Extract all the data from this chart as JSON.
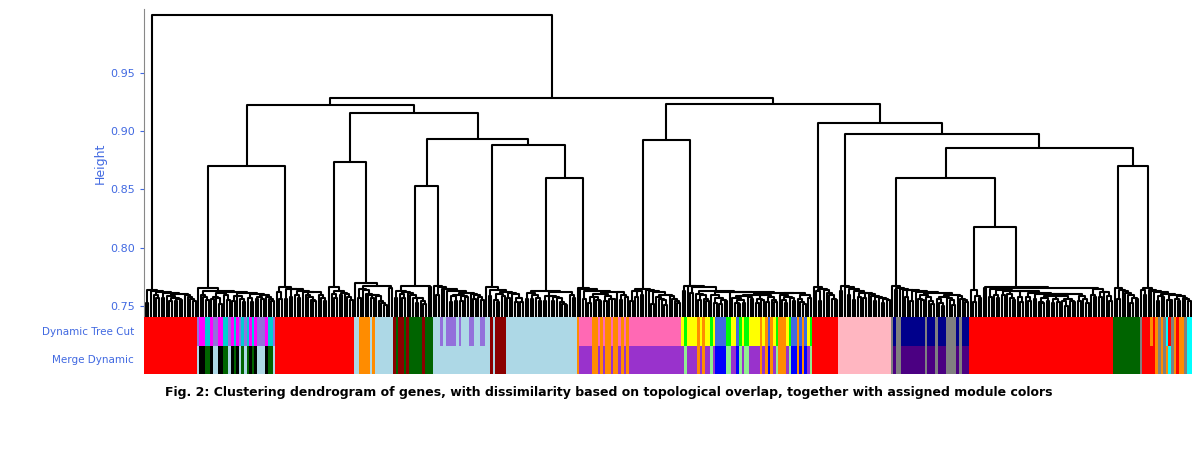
{
  "title": "",
  "ylabel": "Height",
  "ylim": [
    0.74,
    1.005
  ],
  "yticks": [
    0.75,
    0.8,
    0.85,
    0.9,
    0.95
  ],
  "caption": "Fig. 2: Clustering dendrogram of genes, with dissimilarity based on topological overlap, together with assigned module colors",
  "caption_fontsize": 9,
  "ylabel_color": "#4169E1",
  "tick_color": "#4169E1",
  "n_genes": 400,
  "random_seed": 42,
  "dynamic_tree_cut_colors": [
    "#FF0000",
    "#00FFFF",
    "#FF8C00",
    "#808080",
    "#FF8C00",
    "#FF0000",
    "#FF0000",
    "#808080",
    "#00FFFF",
    "#FF8C00",
    "#808080",
    "#FF0000",
    "#FF8C00",
    "#808080",
    "#00FFFF",
    "#FF8C00",
    "#FF0000",
    "#808080",
    "#FF8C00",
    "#FF0000",
    "#00008B",
    "#00008B",
    "#00008B",
    "#00008B",
    "#00008B",
    "#00008B",
    "#00008B",
    "#00008B",
    "#00008B",
    "#00008B",
    "#00008B",
    "#00008B",
    "#00008B",
    "#00008B",
    "#00008B",
    "#00008B",
    "#00008B",
    "#00008B",
    "#00008B",
    "#00008B",
    "#808080",
    "#808080",
    "#808080",
    "#808080",
    "#808080",
    "#808080",
    "#808080",
    "#808080",
    "#808080",
    "#808080",
    "#FF69B4",
    "#FF69B4",
    "#FF69B4",
    "#FF69B4",
    "#FF69B4",
    "#FF69B4",
    "#FF69B4",
    "#FF69B4",
    "#FF69B4",
    "#FF69B4",
    "#FF69B4",
    "#FF69B4",
    "#FF69B4",
    "#FF69B4",
    "#FF69B4",
    "#FF69B4",
    "#FF69B4",
    "#FF69B4",
    "#FF69B4",
    "#FF69B4",
    "#FF69B4",
    "#FF69B4",
    "#FF69B4",
    "#FF69B4",
    "#FF69B4",
    "#FF69B4",
    "#FF69B4",
    "#FF69B4",
    "#FF69B4",
    "#FF69B4",
    "#FF8C00",
    "#FF8C00",
    "#FF8C00",
    "#FF8C00",
    "#FF8C00",
    "#FF8C00",
    "#FF8C00",
    "#FF8C00",
    "#FF8C00",
    "#FF8C00",
    "#FF8C00",
    "#FF8C00",
    "#FF8C00",
    "#FF8C00",
    "#FF8C00",
    "#FF8C00",
    "#FF8C00",
    "#FF8C00",
    "#FF8C00",
    "#FF8C00",
    "#FFFF00",
    "#FFFF00",
    "#FFFF00",
    "#FFFF00",
    "#FFFF00",
    "#FFFF00",
    "#FFFF00",
    "#FFFF00",
    "#FFFF00",
    "#FFFF00",
    "#FFFF00",
    "#FFFF00",
    "#FFFF00",
    "#FFFF00",
    "#FFFF00",
    "#FFFF00",
    "#FFFF00",
    "#FFFF00",
    "#FFFF00",
    "#FFFF00",
    "#4169E1",
    "#4169E1",
    "#4169E1",
    "#4169E1",
    "#4169E1",
    "#4169E1",
    "#4169E1",
    "#4169E1",
    "#4169E1",
    "#4169E1",
    "#00FF00",
    "#00FF00",
    "#00FF00",
    "#00FF00",
    "#00FF00",
    "#00FF00",
    "#00FF00",
    "#00FF00",
    "#00FF00",
    "#00FF00",
    "#FFB6C1",
    "#FFB6C1",
    "#FFB6C1",
    "#FFB6C1",
    "#FFB6C1",
    "#FFB6C1",
    "#FFB6C1",
    "#FFB6C1",
    "#FFB6C1",
    "#FFB6C1",
    "#FFB6C1",
    "#FFB6C1",
    "#FFB6C1",
    "#FFB6C1",
    "#FFB6C1",
    "#FFB6C1",
    "#FFB6C1",
    "#FFB6C1",
    "#FFB6C1",
    "#FFB6C1",
    "#ADD8E6",
    "#ADD8E6",
    "#ADD8E6",
    "#ADD8E6",
    "#ADD8E6",
    "#ADD8E6",
    "#ADD8E6",
    "#ADD8E6",
    "#ADD8E6",
    "#ADD8E6",
    "#8B0000",
    "#8B0000",
    "#8B0000",
    "#8B0000",
    "#8B0000",
    "#8B0000",
    "#8B0000",
    "#8B0000",
    "#8B0000",
    "#8B0000",
    "#006400",
    "#006400",
    "#006400",
    "#006400",
    "#006400",
    "#006400",
    "#006400",
    "#006400",
    "#006400",
    "#006400",
    "#006400",
    "#006400",
    "#006400",
    "#006400",
    "#006400",
    "#006400",
    "#006400",
    "#006400",
    "#006400",
    "#006400",
    "#FF00FF",
    "#FF00FF",
    "#FF00FF",
    "#FF00FF",
    "#FF00FF",
    "#FF00FF",
    "#FF00FF",
    "#FF00FF",
    "#FF00FF",
    "#FF00FF",
    "#00CED1",
    "#00CED1",
    "#00CED1",
    "#00CED1",
    "#00CED1",
    "#00CED1",
    "#00CED1",
    "#00CED1",
    "#00CED1",
    "#00CED1",
    "#9370DB",
    "#9370DB",
    "#9370DB",
    "#9370DB",
    "#9370DB",
    "#9370DB",
    "#9370DB",
    "#9370DB",
    "#9370DB",
    "#9370DB",
    "#9370DB",
    "#9370DB",
    "#9370DB",
    "#9370DB",
    "#9370DB",
    "#9370DB",
    "#9370DB",
    "#9370DB",
    "#9370DB",
    "#9370DB",
    "#ADD8E6",
    "#ADD8E6",
    "#ADD8E6",
    "#ADD8E6",
    "#ADD8E6",
    "#ADD8E6",
    "#ADD8E6",
    "#ADD8E6",
    "#ADD8E6",
    "#ADD8E6",
    "#ADD8E6",
    "#ADD8E6",
    "#ADD8E6",
    "#ADD8E6",
    "#ADD8E6",
    "#ADD8E6",
    "#ADD8E6",
    "#ADD8E6",
    "#ADD8E6",
    "#ADD8E6",
    "#ADD8E6",
    "#ADD8E6",
    "#ADD8E6",
    "#ADD8E6",
    "#ADD8E6",
    "#ADD8E6",
    "#ADD8E6",
    "#ADD8E6",
    "#ADD8E6",
    "#ADD8E6",
    "#ADD8E6",
    "#ADD8E6",
    "#ADD8E6",
    "#ADD8E6",
    "#ADD8E6",
    "#ADD8E6",
    "#ADD8E6",
    "#ADD8E6",
    "#ADD8E6",
    "#ADD8E6",
    "#FF8C00",
    "#FF8C00",
    "#FF8C00",
    "#FF8C00",
    "#FF8C00",
    "#FF0000",
    "#FF0000",
    "#FF0000",
    "#FF0000",
    "#FF0000",
    "#FF0000",
    "#FF0000",
    "#FF0000",
    "#FF0000",
    "#FF0000",
    "#FF0000",
    "#FF0000",
    "#FF0000",
    "#FF0000",
    "#FF0000",
    "#FF0000",
    "#FF0000",
    "#FF0000",
    "#FF0000",
    "#FF0000",
    "#FF0000",
    "#FF0000",
    "#FF0000",
    "#FF0000",
    "#FF0000",
    "#FF0000",
    "#FF0000",
    "#FF0000",
    "#FF0000",
    "#FF0000",
    "#FF0000",
    "#FF0000",
    "#FF0000",
    "#FF0000",
    "#FF0000",
    "#FF0000",
    "#FF0000",
    "#FF0000",
    "#FF0000",
    "#FF0000",
    "#FF0000",
    "#FF0000",
    "#FF0000",
    "#FF0000",
    "#FF0000",
    "#FF0000",
    "#FF0000",
    "#FF0000",
    "#FF0000",
    "#FF0000",
    "#FF0000",
    "#FF0000",
    "#FF0000",
    "#FF0000",
    "#FF0000",
    "#FF0000",
    "#FF0000",
    "#FF0000",
    "#FF0000",
    "#FF0000",
    "#FF0000",
    "#FF0000",
    "#FF0000",
    "#FF0000",
    "#FF0000",
    "#FF0000",
    "#FF0000",
    "#FF0000",
    "#FF0000",
    "#FF0000",
    "#FF0000",
    "#FF0000",
    "#FF0000",
    "#FF0000",
    "#FF0000",
    "#FF0000",
    "#FF0000",
    "#FF0000",
    "#FF0000",
    "#FF0000",
    "#FF0000",
    "#FF0000",
    "#FF0000",
    "#FF0000",
    "#FF0000",
    "#FF0000",
    "#FF0000",
    "#FF0000",
    "#FF0000",
    "#FF0000",
    "#FF0000",
    "#FF0000",
    "#FF0000",
    "#FF0000",
    "#FF0000",
    "#FF0000",
    "#FF0000",
    "#FF0000",
    "#FF0000",
    "#FF0000",
    "#FF0000",
    "#FF0000",
    "#FF0000",
    "#FF0000",
    "#FF0000",
    "#FF0000",
    "#FF0000",
    "#FF0000",
    "#FF0000",
    "#FF0000",
    "#FF0000",
    "#FF0000",
    "#FF0000",
    "#FF0000",
    "#FF0000"
  ],
  "background_color": "#FFFFFF",
  "dendrogram_color": "#000000",
  "label_fontsize": 7.5,
  "row_label_color": "#4169E1"
}
